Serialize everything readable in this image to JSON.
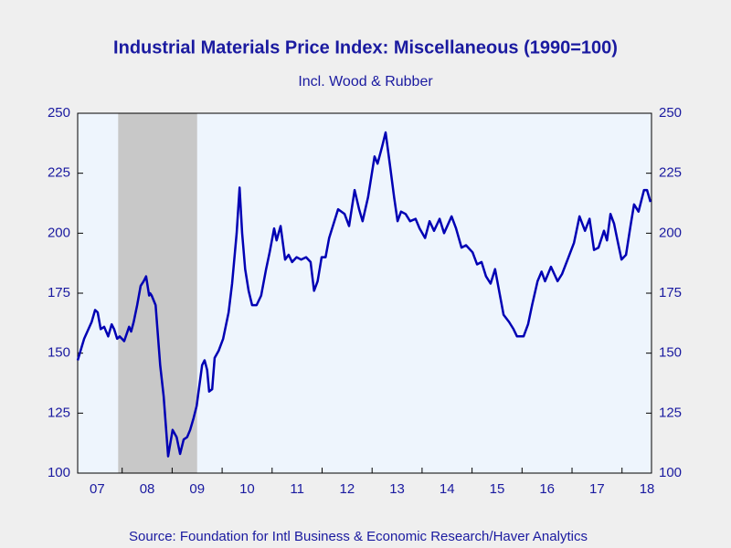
{
  "chart_data": {
    "type": "line",
    "title": "Industrial Materials Price Index: Miscellaneous (1990=100)",
    "subtitle": "Incl. Wood  & Rubber",
    "source": "Source:  Foundation for Intl Business & Economic Research/Haver Analytics",
    "x": [
      2007.11,
      2007.24,
      2007.39,
      2007.46,
      2007.51,
      2007.57,
      2007.64,
      2007.72,
      2007.79,
      2007.84,
      2007.9,
      2007.95,
      2008.04,
      2008.14,
      2008.18,
      2008.23,
      2008.3,
      2008.37,
      2008.43,
      2008.48,
      2008.54,
      2008.56,
      2008.59,
      2008.67,
      2008.76,
      2008.83,
      2008.92,
      2009.01,
      2009.09,
      2009.16,
      2009.23,
      2009.3,
      2009.36,
      2009.43,
      2009.49,
      2009.6,
      2009.65,
      2009.7,
      2009.74,
      2009.8,
      2009.85,
      2009.93,
      2010.02,
      2010.13,
      2010.2,
      2010.29,
      2010.35,
      2010.4,
      2010.46,
      2010.53,
      2010.6,
      2010.69,
      2010.78,
      2010.88,
      2010.95,
      2011.04,
      2011.09,
      2011.17,
      2011.26,
      2011.33,
      2011.4,
      2011.49,
      2011.58,
      2011.68,
      2011.77,
      2011.84,
      2011.91,
      2011.99,
      2012.07,
      2012.14,
      2012.32,
      2012.45,
      2012.54,
      2012.65,
      2012.74,
      2012.81,
      2012.92,
      2013.05,
      2013.11,
      2013.2,
      2013.27,
      2013.36,
      2013.44,
      2013.51,
      2013.58,
      2013.67,
      2013.76,
      2013.87,
      2013.95,
      2014.06,
      2014.15,
      2014.24,
      2014.35,
      2014.44,
      2014.59,
      2014.68,
      2014.79,
      2014.88,
      2015.01,
      2015.1,
      2015.19,
      2015.28,
      2015.37,
      2015.46,
      2015.55,
      2015.63,
      2015.74,
      2015.83,
      2015.9,
      2016.03,
      2016.12,
      2016.2,
      2016.31,
      2016.39,
      2016.46,
      2016.58,
      2016.71,
      2016.8,
      2016.93,
      2017.04,
      2017.15,
      2017.26,
      2017.35,
      2017.44,
      2017.53,
      2017.64,
      2017.7,
      2017.77,
      2017.84,
      2017.92,
      2017.99,
      2018.08,
      2018.17,
      2018.24,
      2018.33,
      2018.44,
      2018.5,
      2018.57
    ],
    "series": [
      {
        "color": "#0000b4",
        "values": [
          147,
          156,
          163,
          168,
          167,
          160,
          161,
          157,
          162,
          160,
          156,
          157,
          155,
          161,
          159,
          163,
          170,
          178,
          180,
          182,
          174,
          175,
          174,
          170,
          145,
          132,
          107,
          118,
          115,
          108,
          114,
          115,
          118,
          123,
          128,
          145,
          147,
          143,
          134,
          135,
          148,
          151,
          156,
          167,
          179,
          200,
          219,
          200,
          185,
          176,
          170,
          170,
          174,
          185,
          192,
          202,
          197,
          203,
          189,
          191,
          188,
          190,
          189,
          190,
          188,
          176,
          180,
          190,
          190,
          198,
          210,
          208,
          203,
          218,
          210,
          205,
          215,
          232,
          229,
          236,
          242,
          228,
          215,
          205,
          209,
          208,
          205,
          206,
          202,
          198,
          205,
          201,
          206,
          200,
          207,
          202,
          194,
          195,
          192,
          187,
          188,
          182,
          179,
          185,
          175,
          166,
          163,
          160,
          157,
          157,
          162,
          170,
          180,
          184,
          180,
          186,
          180,
          183,
          190,
          196,
          207,
          201,
          206,
          193,
          194,
          201,
          197,
          208,
          204,
          196,
          189,
          191,
          203,
          212,
          209,
          218,
          218,
          213
        ]
      }
    ],
    "xlim": [
      2007.11,
      2018.59
    ],
    "xticks": [
      {
        "value": 2007.5,
        "label": "07"
      },
      {
        "value": 2008.5,
        "label": "08"
      },
      {
        "value": 2009.5,
        "label": "09"
      },
      {
        "value": 2010.5,
        "label": "10"
      },
      {
        "value": 2011.5,
        "label": "11"
      },
      {
        "value": 2012.5,
        "label": "12"
      },
      {
        "value": 2013.5,
        "label": "13"
      },
      {
        "value": 2014.5,
        "label": "14"
      },
      {
        "value": 2015.5,
        "label": "15"
      },
      {
        "value": 2016.5,
        "label": "16"
      },
      {
        "value": 2017.5,
        "label": "17"
      },
      {
        "value": 2018.5,
        "label": "18"
      }
    ],
    "xminor": [
      2008,
      2009,
      2010,
      2011,
      2012,
      2013,
      2014,
      2015,
      2016,
      2017,
      2018
    ],
    "ylim": [
      100,
      250
    ],
    "yticks": [
      100,
      125,
      150,
      175,
      200,
      225,
      250
    ],
    "y2lim": [
      100,
      250
    ],
    "y2ticks": [
      100,
      125,
      150,
      175,
      200,
      225,
      250
    ],
    "shaded": [
      [
        2007.92,
        2009.5
      ]
    ],
    "shade_color": "#c8c8c8"
  }
}
